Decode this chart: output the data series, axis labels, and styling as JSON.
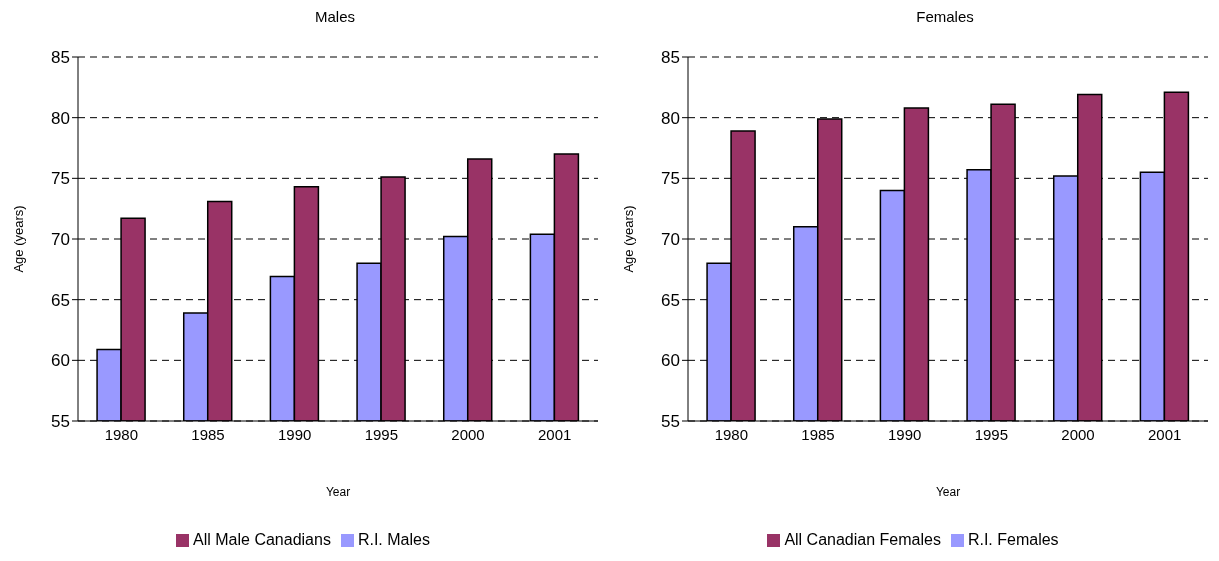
{
  "chart_data": [
    {
      "type": "bar",
      "title": "Males",
      "xlabel": "Year",
      "ylabel": "Age (years)",
      "categories": [
        "1980",
        "1985",
        "1990",
        "1995",
        "2000",
        "2001"
      ],
      "series": [
        {
          "name": "R.I. Males",
          "color": "#9999ff",
          "values": [
            60.9,
            63.9,
            66.9,
            68.0,
            70.2,
            70.4
          ]
        },
        {
          "name": "All Male Canadians",
          "color": "#993366",
          "values": [
            71.7,
            73.1,
            74.3,
            75.1,
            76.6,
            77.0
          ]
        }
      ],
      "ylim": [
        55,
        85
      ],
      "yticks": [
        55,
        60,
        65,
        70,
        75,
        80,
        85
      ],
      "grid": "y",
      "legend": "bottom"
    },
    {
      "type": "bar",
      "title": "Females",
      "xlabel": "Year",
      "ylabel": "Age (years)",
      "categories": [
        "1980",
        "1985",
        "1990",
        "1995",
        "2000",
        "2001"
      ],
      "series": [
        {
          "name": "R.I. Females",
          "color": "#9999ff",
          "values": [
            68.0,
            71.0,
            74.0,
            75.7,
            75.2,
            75.5
          ]
        },
        {
          "name": "All Canadian Females",
          "color": "#993366",
          "values": [
            78.9,
            79.9,
            80.8,
            81.1,
            81.9,
            82.1
          ]
        }
      ],
      "ylim": [
        55,
        85
      ],
      "yticks": [
        55,
        60,
        65,
        70,
        75,
        80,
        85
      ],
      "grid": "y",
      "legend": "bottom"
    }
  ]
}
